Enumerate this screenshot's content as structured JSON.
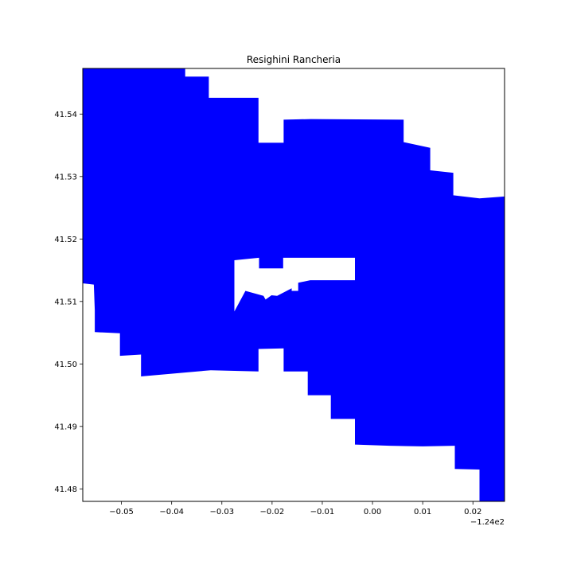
{
  "chart_data": {
    "type": "map",
    "title": "Resighini Rancheria",
    "fill_color": "#0000ff",
    "axes_edge_color": "#000000",
    "xlim": [
      -124.0577,
      -123.9737
    ],
    "ylim": [
      41.478,
      41.5473
    ],
    "x_ticks": [
      {
        "value": -124.05,
        "label": "−0.05"
      },
      {
        "value": -124.04,
        "label": "−0.04"
      },
      {
        "value": -124.03,
        "label": "−0.03"
      },
      {
        "value": -124.02,
        "label": "−0.02"
      },
      {
        "value": -124.01,
        "label": "−0.01"
      },
      {
        "value": -124.0,
        "label": "0.00"
      },
      {
        "value": -123.99,
        "label": "0.01"
      },
      {
        "value": -123.98,
        "label": "0.02"
      }
    ],
    "x_offset_label": "−1.24e2",
    "y_ticks": [
      {
        "value": 41.48,
        "label": "41.48"
      },
      {
        "value": 41.49,
        "label": "41.49"
      },
      {
        "value": 41.5,
        "label": "41.50"
      },
      {
        "value": 41.51,
        "label": "41.51"
      },
      {
        "value": 41.52,
        "label": "41.52"
      },
      {
        "value": 41.53,
        "label": "41.53"
      },
      {
        "value": 41.54,
        "label": "41.54"
      }
    ],
    "boundary": [
      [
        -124.0577,
        41.5473
      ],
      [
        -124.0373,
        41.5473
      ],
      [
        -124.0373,
        41.546
      ],
      [
        -124.0326,
        41.546
      ],
      [
        -124.0326,
        41.5426
      ],
      [
        -124.0227,
        41.5426
      ],
      [
        -124.0227,
        41.5354
      ],
      [
        -124.0177,
        41.5354
      ],
      [
        -124.0177,
        41.5391
      ],
      [
        -124.0123,
        41.5392
      ],
      [
        -123.9938,
        41.5391
      ],
      [
        -123.9938,
        41.5355
      ],
      [
        -123.9885,
        41.5346
      ],
      [
        -123.9885,
        41.531
      ],
      [
        -123.9839,
        41.5306
      ],
      [
        -123.9839,
        41.527
      ],
      [
        -123.9787,
        41.5265
      ],
      [
        -123.9737,
        41.5268
      ],
      [
        -123.9737,
        41.478
      ],
      [
        -123.9787,
        41.478
      ],
      [
        -123.9787,
        41.4831
      ],
      [
        -123.9836,
        41.4832
      ],
      [
        -123.9836,
        41.4869
      ],
      [
        -123.99,
        41.4868
      ],
      [
        -123.9966,
        41.4869
      ],
      [
        -124.0035,
        41.4871
      ],
      [
        -124.0035,
        41.4912
      ],
      [
        -124.0083,
        41.4912
      ],
      [
        -124.0083,
        41.495
      ],
      [
        -124.0129,
        41.495
      ],
      [
        -124.0129,
        41.4988
      ],
      [
        -124.0177,
        41.4988
      ],
      [
        -124.0177,
        41.5025
      ],
      [
        -124.0227,
        41.5024
      ],
      [
        -124.0227,
        41.4988
      ],
      [
        -124.0322,
        41.499
      ],
      [
        -124.0461,
        41.498
      ],
      [
        -124.0461,
        41.5015
      ],
      [
        -124.0503,
        41.5013
      ],
      [
        -124.0503,
        41.5049
      ],
      [
        -124.0553,
        41.5051
      ],
      [
        -124.0553,
        41.5086
      ],
      [
        -124.0555,
        41.5127
      ],
      [
        -124.0577,
        41.5129
      ]
    ],
    "hole": [
      [
        -124.0275,
        41.5084
      ],
      [
        -124.0275,
        41.5166
      ],
      [
        -124.0226,
        41.517
      ],
      [
        -124.0226,
        41.5153
      ],
      [
        -124.0178,
        41.5153
      ],
      [
        -124.0178,
        41.517
      ],
      [
        -124.0035,
        41.517
      ],
      [
        -124.0035,
        41.5134
      ],
      [
        -124.0124,
        41.5134
      ],
      [
        -124.0148,
        41.513
      ],
      [
        -124.0148,
        41.5117
      ],
      [
        -124.0161,
        41.5117
      ],
      [
        -124.0161,
        41.5121
      ],
      [
        -124.019,
        41.5109
      ],
      [
        -124.0201,
        41.511
      ],
      [
        -124.0213,
        41.5103
      ],
      [
        -124.0217,
        41.5109
      ],
      [
        -124.0253,
        41.5117
      ]
    ]
  }
}
